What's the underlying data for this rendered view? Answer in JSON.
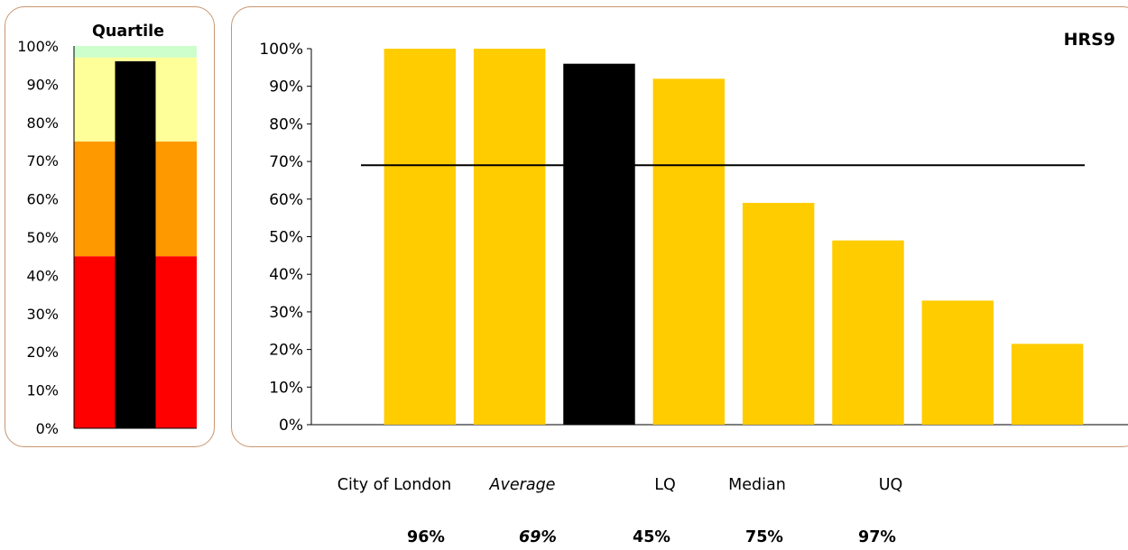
{
  "chart_data": [
    {
      "type": "bar",
      "title": "Quartile",
      "ylim": [
        0,
        1
      ],
      "yticks": [
        "0%",
        "10%",
        "20%",
        "30%",
        "40%",
        "50%",
        "60%",
        "70%",
        "80%",
        "90%",
        "100%"
      ],
      "bands": [
        {
          "from": 0,
          "to": 0.45,
          "color": "#ff0000"
        },
        {
          "from": 0.45,
          "to": 0.75,
          "color": "#ff9900"
        },
        {
          "from": 0.75,
          "to": 0.97,
          "color": "#ffff99"
        },
        {
          "from": 0.97,
          "to": 1.0,
          "color": "#ccffcc"
        }
      ],
      "value": 0.96,
      "bar_color": "#000000"
    },
    {
      "type": "bar",
      "title": "HRS9",
      "ylim": [
        0,
        1
      ],
      "yticks": [
        "0%",
        "10%",
        "20%",
        "30%",
        "40%",
        "50%",
        "60%",
        "70%",
        "80%",
        "90%",
        "100%"
      ],
      "values": [
        null,
        1.0,
        1.0,
        0.96,
        0.92,
        0.59,
        0.49,
        0.33,
        0.215
      ],
      "highlight_index": 3,
      "bar_color": "#ffcc00",
      "highlight_color": "#000000",
      "average_line": 0.69,
      "grid": false
    }
  ],
  "summary": {
    "labels": [
      "City of London",
      "Average",
      "LQ",
      "Median",
      "UQ"
    ],
    "values": [
      "96%",
      "69%",
      "45%",
      "75%",
      "97%"
    ]
  }
}
